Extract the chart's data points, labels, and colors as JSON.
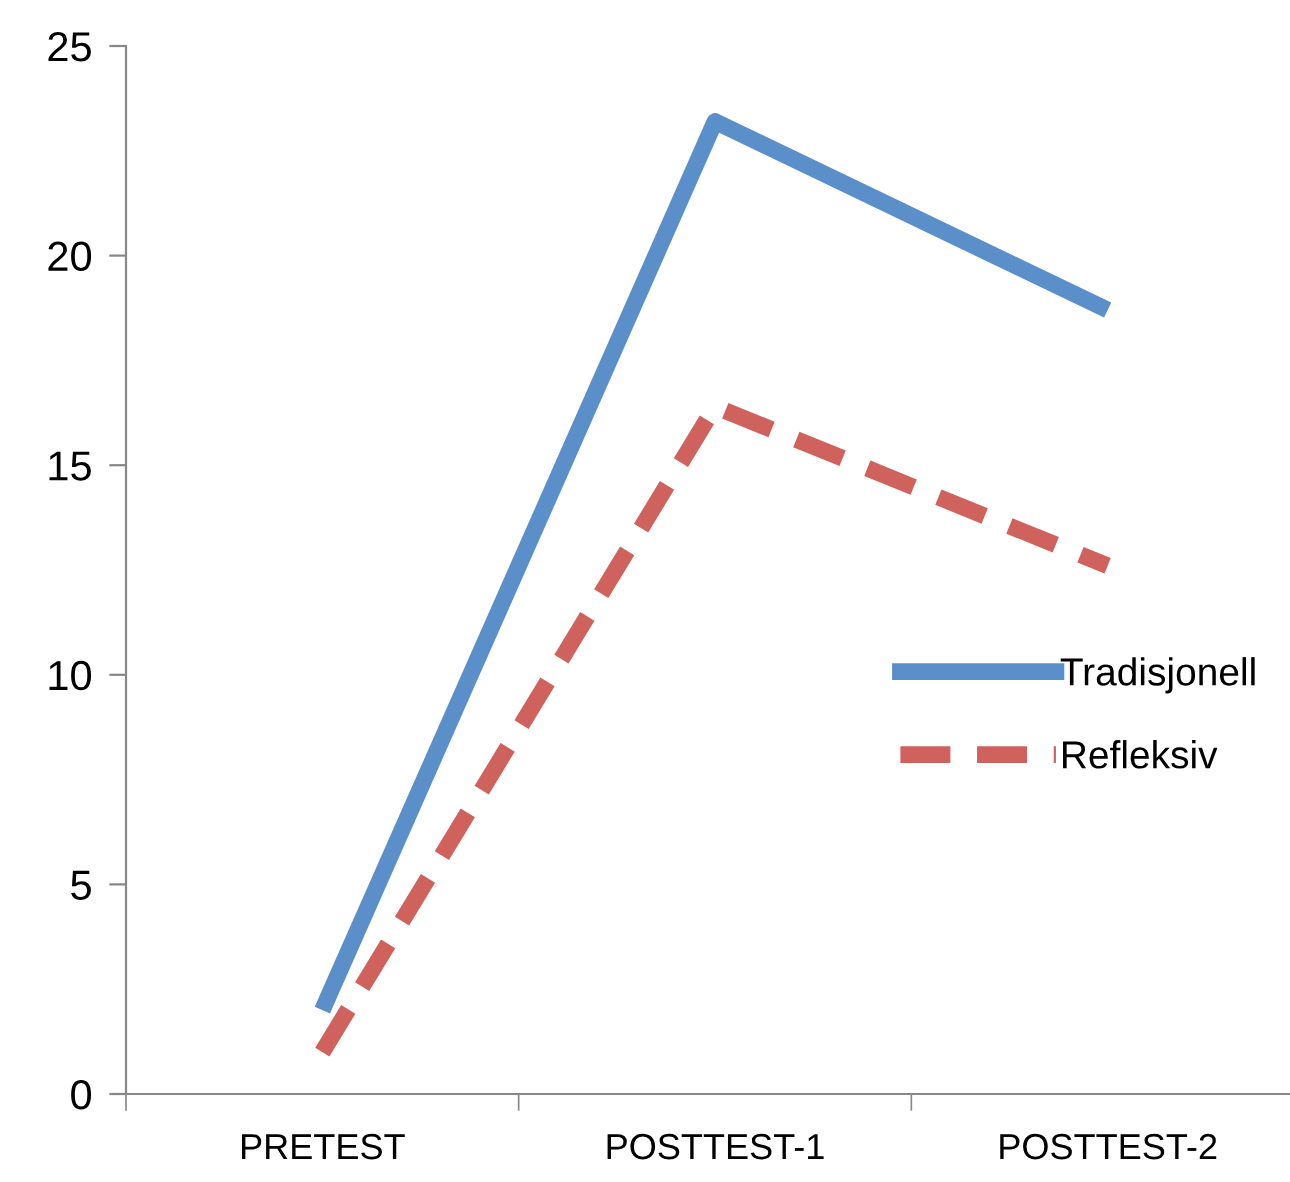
{
  "chart_data": {
    "type": "line",
    "categories": [
      "PRETEST",
      "POSTTEST-1",
      "POSTTEST-2"
    ],
    "series": [
      {
        "name": "Tradisjonell",
        "color": "#5b8fc9",
        "values": [
          2.0,
          23.2,
          18.7
        ],
        "line_style": "solid"
      },
      {
        "name": "Refleksiv",
        "color": "#d0625e",
        "values": [
          1.0,
          16.4,
          12.6
        ],
        "line_style": "dashed"
      }
    ],
    "ylim": [
      0,
      25
    ],
    "yticks": [
      0,
      5,
      10,
      15,
      20,
      25
    ],
    "grid": false,
    "legend": "right",
    "marker": "none"
  }
}
